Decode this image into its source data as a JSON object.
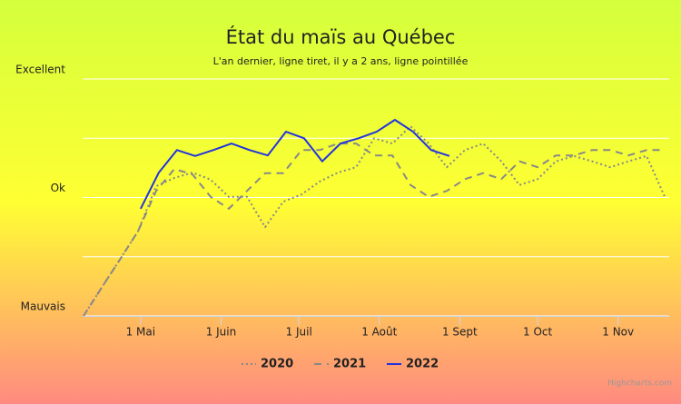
{
  "chart_data": {
    "type": "line",
    "title": "État du maïs au Québec",
    "subtitle": "L'an dernier, ligne tiret, il y a 2 ans, ligne pointillée",
    "credits": "Highcharts.com",
    "xlim": [
      "04-09",
      "11-20"
    ],
    "xticks": [
      {
        "value": "05-01",
        "label": "1 Mai"
      },
      {
        "value": "06-01",
        "label": "1 Juin"
      },
      {
        "value": "07-01",
        "label": "1 Juil"
      },
      {
        "value": "08-01",
        "label": "1 Août"
      },
      {
        "value": "09-01",
        "label": "1 Sept"
      },
      {
        "value": "10-01",
        "label": "1 Oct"
      },
      {
        "value": "11-01",
        "label": "1 Nov"
      }
    ],
    "ylim": [
      0,
      4
    ],
    "yticks": [
      {
        "value": 0,
        "label": "Mauvais"
      },
      {
        "value": 1,
        "label": null
      },
      {
        "value": 2,
        "label": "Ok"
      },
      {
        "value": 3,
        "label": null
      },
      {
        "value": 4,
        "label": "Excellent"
      }
    ],
    "grid": true,
    "legend": "bottom",
    "series": [
      {
        "name": "2020",
        "color": "#888888",
        "dash": "dot",
        "x": [
          "04-09",
          "04-16",
          "04-23",
          "04-30",
          "05-07",
          "05-14",
          "05-21",
          "05-28",
          "06-04",
          "06-11",
          "06-18",
          "06-25",
          "07-02",
          "07-09",
          "07-16",
          "07-23",
          "07-30",
          "08-06",
          "08-13",
          "08-20",
          "08-27",
          "09-03",
          "09-10",
          "09-17",
          "09-24",
          "10-01",
          "10-08",
          "10-15",
          "10-22",
          "10-29",
          "11-05",
          "11-12",
          "11-19"
        ],
        "values": [
          0,
          0.48,
          0.95,
          1.43,
          2.19,
          2.33,
          2.42,
          2.3,
          2.01,
          2.01,
          1.5,
          1.93,
          2.05,
          2.27,
          2.42,
          2.51,
          3.0,
          2.91,
          3.2,
          2.91,
          2.51,
          2.8,
          2.91,
          2.61,
          2.21,
          2.31,
          2.61,
          2.7,
          2.61,
          2.51,
          2.61,
          2.7,
          2.01
        ]
      },
      {
        "name": "2021",
        "color": "#888888",
        "dash": "dash",
        "x": [
          "04-09",
          "04-16",
          "04-23",
          "04-30",
          "05-07",
          "05-14",
          "05-21",
          "05-28",
          "06-04",
          "06-11",
          "06-18",
          "06-25",
          "07-02",
          "07-09",
          "07-16",
          "07-23",
          "07-30",
          "08-06",
          "08-13",
          "08-20",
          "08-27",
          "09-03",
          "09-10",
          "09-17",
          "09-24",
          "10-01",
          "10-08",
          "10-15",
          "10-22",
          "10-29",
          "11-05",
          "11-12",
          "11-19"
        ],
        "values": [
          0,
          0.48,
          0.95,
          1.43,
          2.11,
          2.48,
          2.39,
          2.01,
          1.81,
          2.11,
          2.41,
          2.41,
          2.8,
          2.8,
          2.91,
          2.91,
          2.71,
          2.71,
          2.21,
          2.01,
          2.11,
          2.31,
          2.41,
          2.31,
          2.61,
          2.51,
          2.71,
          2.71,
          2.8,
          2.8,
          2.71,
          2.8,
          2.8
        ]
      },
      {
        "name": "2022",
        "color": "#2233dd",
        "dash": "solid",
        "x": [
          "05-01",
          "05-08",
          "05-15",
          "05-22",
          "05-29",
          "06-05",
          "06-12",
          "06-19",
          "06-26",
          "07-03",
          "07-10",
          "07-17",
          "07-24",
          "07-31",
          "08-07",
          "08-14",
          "08-21",
          "08-28"
        ],
        "values": [
          1.81,
          2.42,
          2.8,
          2.7,
          2.8,
          2.91,
          2.8,
          2.71,
          3.11,
          3.0,
          2.61,
          2.91,
          3.0,
          3.11,
          3.31,
          3.11,
          2.8,
          2.7
        ]
      }
    ]
  }
}
